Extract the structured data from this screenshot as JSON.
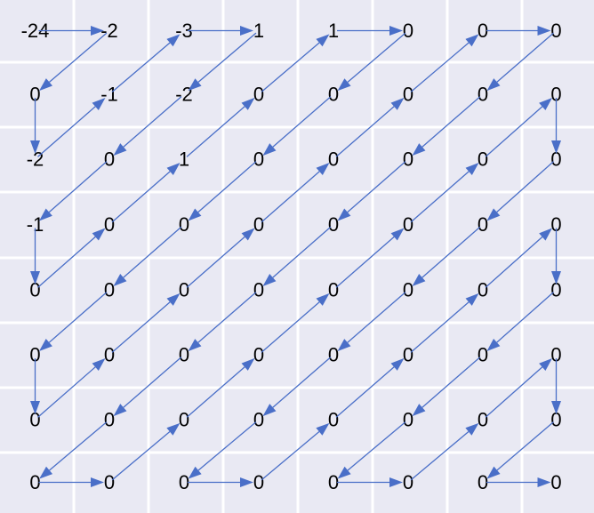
{
  "colors": {
    "cell_fill": "#e9e9f3",
    "grid_line": "#ffffff",
    "arrow": "#4a6fc8",
    "text": "#000000"
  },
  "matrix": [
    [
      "-24",
      "-2",
      "-3",
      "1",
      "1",
      "0",
      "0",
      "0"
    ],
    [
      "0",
      "-1",
      "-2",
      "0",
      "0",
      "0",
      "0",
      "0"
    ],
    [
      "-2",
      "0",
      "1",
      "0",
      "0",
      "0",
      "0",
      "0"
    ],
    [
      "-1",
      "0",
      "0",
      "0",
      "0",
      "0",
      "0",
      "0"
    ],
    [
      "0",
      "0",
      "0",
      "0",
      "0",
      "0",
      "0",
      "0"
    ],
    [
      "0",
      "0",
      "0",
      "0",
      "0",
      "0",
      "0",
      "0"
    ],
    [
      "0",
      "0",
      "0",
      "0",
      "0",
      "0",
      "0",
      "0"
    ],
    [
      "0",
      "0",
      "0",
      "0",
      "0",
      "0",
      "0",
      "0"
    ]
  ],
  "scan": {
    "name": "zigzag",
    "order": [
      [
        0,
        0
      ],
      [
        0,
        1
      ],
      [
        1,
        0
      ],
      [
        2,
        0
      ],
      [
        1,
        1
      ],
      [
        0,
        2
      ],
      [
        0,
        3
      ],
      [
        1,
        2
      ],
      [
        2,
        1
      ],
      [
        3,
        0
      ],
      [
        4,
        0
      ],
      [
        3,
        1
      ],
      [
        2,
        2
      ],
      [
        1,
        3
      ],
      [
        0,
        4
      ],
      [
        0,
        5
      ],
      [
        1,
        4
      ],
      [
        2,
        3
      ],
      [
        3,
        2
      ],
      [
        4,
        1
      ],
      [
        5,
        0
      ],
      [
        6,
        0
      ],
      [
        5,
        1
      ],
      [
        4,
        2
      ],
      [
        3,
        3
      ],
      [
        2,
        4
      ],
      [
        1,
        5
      ],
      [
        0,
        6
      ],
      [
        0,
        7
      ],
      [
        1,
        6
      ],
      [
        2,
        5
      ],
      [
        3,
        4
      ],
      [
        4,
        3
      ],
      [
        5,
        2
      ],
      [
        6,
        1
      ],
      [
        7,
        0
      ],
      [
        7,
        1
      ],
      [
        6,
        2
      ],
      [
        5,
        3
      ],
      [
        4,
        4
      ],
      [
        3,
        5
      ],
      [
        2,
        6
      ],
      [
        1,
        7
      ],
      [
        2,
        7
      ],
      [
        3,
        6
      ],
      [
        4,
        5
      ],
      [
        5,
        4
      ],
      [
        6,
        3
      ],
      [
        7,
        2
      ],
      [
        7,
        3
      ],
      [
        6,
        4
      ],
      [
        5,
        5
      ],
      [
        4,
        6
      ],
      [
        3,
        7
      ],
      [
        4,
        7
      ],
      [
        5,
        6
      ],
      [
        6,
        5
      ],
      [
        7,
        4
      ],
      [
        7,
        5
      ],
      [
        6,
        6
      ],
      [
        5,
        7
      ],
      [
        6,
        7
      ],
      [
        7,
        6
      ],
      [
        7,
        7
      ]
    ]
  }
}
